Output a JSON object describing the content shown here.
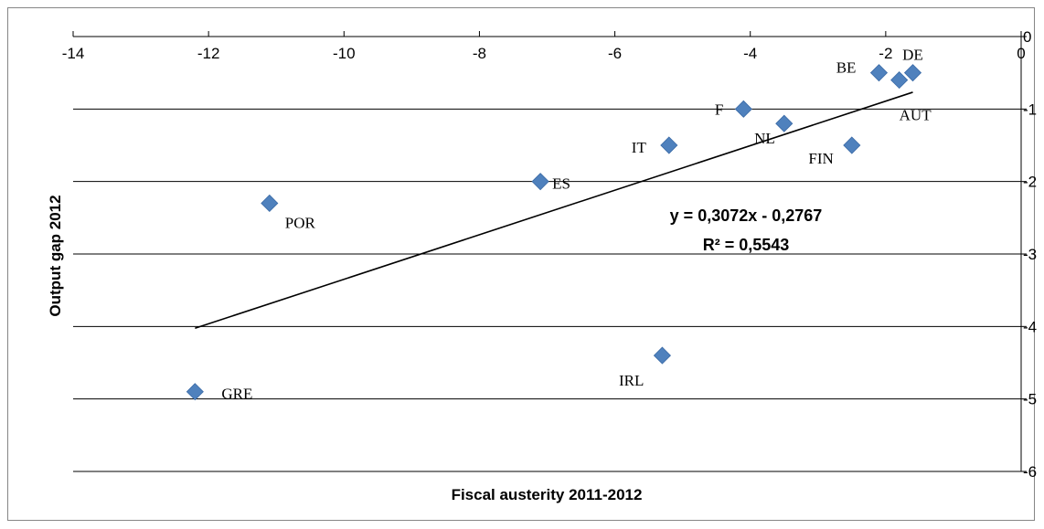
{
  "chart_data": {
    "type": "scatter",
    "title": "",
    "xlabel": "Fiscal austerity 2011-2012",
    "ylabel": "Output gap 2012",
    "xlim": [
      -14,
      0
    ],
    "ylim": [
      -6,
      0
    ],
    "x_ticks": [
      -14,
      -12,
      -10,
      -8,
      -6,
      -4,
      -2,
      0
    ],
    "y_ticks": [
      0,
      -1,
      -2,
      -3,
      -4,
      -5,
      -6
    ],
    "x_axis_position": "top",
    "y_axis_position": "right",
    "grid": "horizontal",
    "marker_color": "#4F81BD",
    "points": [
      {
        "label": "DE",
        "x": -1.6,
        "y": -0.5
      },
      {
        "label": "AUT",
        "x": -1.8,
        "y": -0.6
      },
      {
        "label": "BE",
        "x": -2.1,
        "y": -0.5
      },
      {
        "label": "FIN",
        "x": -2.5,
        "y": -1.5
      },
      {
        "label": "F",
        "x": -4.1,
        "y": -1.0
      },
      {
        "label": "NL",
        "x": -3.5,
        "y": -1.2
      },
      {
        "label": "IT",
        "x": -5.2,
        "y": -1.5
      },
      {
        "label": "ES",
        "x": -7.1,
        "y": -2.0
      },
      {
        "label": "POR",
        "x": -11.1,
        "y": -2.3
      },
      {
        "label": "IRL",
        "x": -5.3,
        "y": -4.4
      },
      {
        "label": "GRE",
        "x": -12.2,
        "y": -4.9
      }
    ],
    "trendline": {
      "slope": 0.3072,
      "intercept": -0.2767,
      "x_range": [
        -12.2,
        -1.6
      ],
      "equation": "y = 0,3072x - 0,2767",
      "r_squared": "R² = 0,5543"
    }
  }
}
